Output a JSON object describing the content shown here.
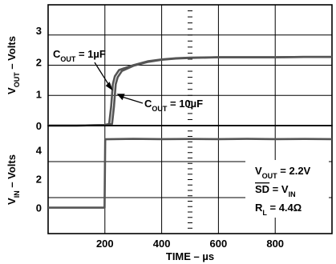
{
  "chart_data": [
    {
      "type": "line",
      "panel": "top",
      "ylabel_parts": [
        [
          "V",
          ""
        ],
        [
          "OUT",
          "sub"
        ],
        [
          " – Volts",
          ""
        ]
      ],
      "yticks": [
        0,
        1,
        2,
        3
      ],
      "ylim": [
        0,
        3.8
      ],
      "xlim": [
        0,
        1000
      ],
      "grid": true,
      "series": [
        {
          "name_parts": [
            [
              "C",
              ""
            ],
            [
              "OUT",
              "sub"
            ],
            [
              " = 1µF",
              ""
            ]
          ],
          "x": [
            0,
            100,
            200,
            215,
            222,
            228,
            235,
            250,
            300,
            350,
            400,
            450,
            500,
            600,
            700,
            800,
            900,
            1000
          ],
          "y": [
            0,
            0,
            0.02,
            0.05,
            0.6,
            1.3,
            1.55,
            1.75,
            1.9,
            2.02,
            2.08,
            2.12,
            2.14,
            2.15,
            2.15,
            2.15,
            2.16,
            2.16
          ]
        },
        {
          "name_parts": [
            [
              "C",
              ""
            ],
            [
              "OUT",
              "sub"
            ],
            [
              " = 10µF",
              ""
            ]
          ],
          "x": [
            0,
            100,
            200,
            225,
            232,
            238,
            245,
            260,
            300,
            350,
            400,
            450,
            500,
            600,
            700,
            800,
            900,
            1000
          ],
          "y": [
            0,
            0,
            0.02,
            0.05,
            0.6,
            1.3,
            1.52,
            1.72,
            1.88,
            2.0,
            2.07,
            2.11,
            2.13,
            2.15,
            2.15,
            2.15,
            2.16,
            2.16
          ]
        }
      ]
    },
    {
      "type": "line",
      "panel": "bottom",
      "ylabel_parts": [
        [
          "V",
          ""
        ],
        [
          "IN",
          "sub"
        ],
        [
          " – Volts",
          ""
        ]
      ],
      "xlabel": "TIME – µs",
      "yticks": [
        0,
        2,
        4
      ],
      "xticks": [
        200,
        400,
        600,
        800
      ],
      "ylim": [
        -1.8,
        5.7
      ],
      "xlim": [
        0,
        1000
      ],
      "grid": true,
      "series": [
        {
          "name": "VIN",
          "x": [
            0,
            100,
            199,
            200,
            201,
            300,
            400,
            500,
            600,
            700,
            800,
            900,
            1000
          ],
          "y": [
            0,
            0,
            0,
            2.4,
            4.75,
            4.78,
            4.76,
            4.77,
            4.76,
            4.78,
            4.76,
            4.77,
            4.76
          ]
        }
      ],
      "annotation_lines": [
        [
          [
            "V",
            "over"
          ],
          [
            "OUT",
            "sub"
          ],
          [
            " = 2.2V",
            ""
          ]
        ],
        [
          [
            "SD",
            "overline"
          ],
          [
            " = V",
            ""
          ],
          [
            "IN",
            "sub"
          ]
        ],
        [
          [
            "R",
            ""
          ],
          [
            "L",
            "sub"
          ],
          [
            " = 4.4Ω",
            ""
          ]
        ]
      ]
    }
  ]
}
